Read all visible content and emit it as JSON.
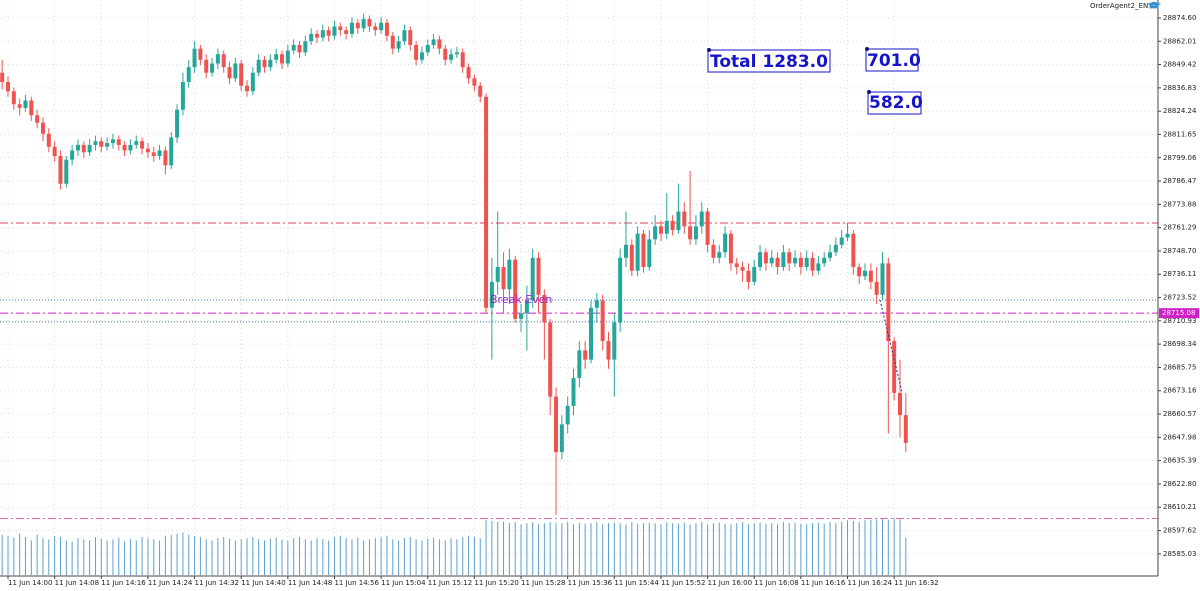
{
  "chart_data": {
    "type": "candlestick",
    "app_label": "OrderAgent2_EN",
    "ylim": [
      28573.6,
      28884.3
    ],
    "yticks": [
      {
        "value": 28874.6,
        "label": "28874.60"
      },
      28862.01,
      28849.42,
      28836.83,
      28824.24,
      28811.65,
      28799.06,
      28786.47,
      28773.88,
      28761.29,
      {
        "value": 28748.7,
        "label": "28748.70"
      },
      28736.11,
      28723.52,
      28710.93,
      28698.34,
      28685.75,
      28673.16,
      28660.57,
      28647.98,
      28635.39,
      {
        "value": 28622.8,
        "label": "28622.80"
      },
      28610.21,
      28597.62,
      28585.03
    ],
    "grid": true,
    "up_color": "#26a69a",
    "down_color": "#ef5350",
    "volume_color": "#5b9fcf",
    "categories": [
      null,
      "11 Jun 14:00",
      null,
      null,
      null,
      null,
      null,
      null,
      null,
      "11 Jun 14:08",
      null,
      null,
      null,
      null,
      null,
      null,
      null,
      "11 Jun 14:16",
      null,
      null,
      null,
      null,
      null,
      null,
      null,
      "11 Jun 14:24",
      null,
      null,
      null,
      null,
      null,
      null,
      null,
      "11 Jun 14:32",
      null,
      null,
      null,
      null,
      null,
      null,
      null,
      "11 Jun 14:40",
      null,
      null,
      null,
      null,
      null,
      null,
      null,
      "11 Jun 14:48",
      null,
      null,
      null,
      null,
      null,
      null,
      null,
      "11 Jun 14:56",
      null,
      null,
      null,
      null,
      null,
      null,
      null,
      "11 Jun 15:04",
      null,
      null,
      null,
      null,
      null,
      null,
      null,
      "11 Jun 15:12",
      null,
      null,
      null,
      null,
      null,
      null,
      null,
      "11 Jun 15:20",
      null,
      null,
      null,
      null,
      null,
      null,
      null,
      "11 Jun 15:28",
      null,
      null,
      null,
      null,
      null,
      null,
      null,
      "11 Jun 15:36",
      null,
      null,
      null,
      null,
      null,
      null,
      null,
      "11 Jun 15:44",
      null,
      null,
      null,
      null,
      null,
      null,
      null,
      "11 Jun 15:52",
      null,
      null,
      null,
      null,
      null,
      null,
      null,
      "11 Jun 16:00",
      null,
      null,
      null,
      null,
      null,
      null,
      null,
      "11 Jun 16:08",
      null,
      null,
      null,
      null,
      null,
      null,
      null,
      "11 Jun 16:16",
      null,
      null,
      null,
      null,
      null,
      null,
      null,
      "11 Jun 16:24",
      null,
      null,
      null,
      null,
      null,
      null,
      null,
      "11 Jun 16:32",
      null,
      null
    ],
    "candles": [
      [
        28845,
        28852,
        28836,
        28840
      ],
      [
        28840,
        28843,
        28832,
        28835
      ],
      [
        28835,
        28837,
        28825,
        28828
      ],
      [
        28828,
        28831,
        28822,
        28826
      ],
      [
        28826,
        28833,
        28824,
        28830
      ],
      [
        28830,
        28832,
        28819,
        28822
      ],
      [
        28822,
        28825,
        28815,
        28818
      ],
      [
        28818,
        28821,
        28808,
        28812
      ],
      [
        28812,
        28815,
        28802,
        28805
      ],
      [
        28805,
        28808,
        28797,
        28800
      ],
      [
        28800,
        28803,
        28782,
        28785
      ],
      [
        28785,
        28800,
        28783,
        28798
      ],
      [
        28798,
        28806,
        28795,
        28803
      ],
      [
        28803,
        28809,
        28800,
        28806
      ],
      [
        28806,
        28808,
        28799,
        28802
      ],
      [
        28802,
        28809,
        28800,
        28806
      ],
      [
        28806,
        28811,
        28803,
        28808
      ],
      [
        28808,
        28810,
        28802,
        28805
      ],
      [
        28805,
        28810,
        28803,
        28807
      ],
      [
        28807,
        28812,
        28804,
        28809
      ],
      [
        28809,
        28811,
        28803,
        28806
      ],
      [
        28806,
        28808,
        28800,
        28803
      ],
      [
        28803,
        28809,
        28801,
        28806
      ],
      [
        28806,
        28811,
        28804,
        28808
      ],
      [
        28808,
        28810,
        28801,
        28804
      ],
      [
        28804,
        28807,
        28799,
        28802
      ],
      [
        28802,
        28805,
        28797,
        28800
      ],
      [
        28800,
        28806,
        28798,
        28803
      ],
      [
        28803,
        28805,
        28790,
        28795
      ],
      [
        28795,
        28813,
        28793,
        28810
      ],
      [
        28810,
        28828,
        28807,
        28825
      ],
      [
        28825,
        28845,
        28822,
        28840
      ],
      [
        28840,
        28852,
        28837,
        28848
      ],
      [
        28848,
        28862,
        28845,
        28858
      ],
      [
        28858,
        28860,
        28849,
        28852
      ],
      [
        28852,
        28855,
        28842,
        28845
      ],
      [
        28845,
        28853,
        28843,
        28850
      ],
      [
        28850,
        28858,
        28847,
        28855
      ],
      [
        28855,
        28857,
        28845,
        28848
      ],
      [
        28848,
        28851,
        28839,
        28842
      ],
      [
        28842,
        28853,
        28840,
        28850
      ],
      [
        28850,
        28852,
        28835,
        28838
      ],
      [
        28838,
        28841,
        28832,
        28835
      ],
      [
        28835,
        28848,
        28833,
        28845
      ],
      [
        28845,
        28855,
        28843,
        28852
      ],
      [
        28852,
        28854,
        28845,
        28848
      ],
      [
        28848,
        28855,
        28846,
        28852
      ],
      [
        28852,
        28858,
        28850,
        28855
      ],
      [
        28855,
        28857,
        28847,
        28850
      ],
      [
        28850,
        28860,
        28848,
        28857
      ],
      [
        28857,
        28863,
        28855,
        28860
      ],
      [
        28860,
        28862,
        28853,
        28856
      ],
      [
        28856,
        28865,
        28854,
        28862
      ],
      [
        28862,
        28869,
        28860,
        28866
      ],
      [
        28866,
        28868,
        28861,
        28864
      ],
      [
        28864,
        28871,
        28862,
        28868
      ],
      [
        28868,
        28870,
        28862,
        28865
      ],
      [
        28865,
        28873,
        28863,
        28870
      ],
      [
        28870,
        28872,
        28865,
        28868
      ],
      [
        28868,
        28870,
        28863,
        28866
      ],
      [
        28866,
        28875,
        28864,
        28872
      ],
      [
        28872,
        28874,
        28866,
        28869
      ],
      [
        28869,
        28877,
        28867,
        28874
      ],
      [
        28874,
        28876,
        28867,
        28870
      ],
      [
        28870,
        28872,
        28865,
        28868
      ],
      [
        28868,
        28875,
        28866,
        28872
      ],
      [
        28872,
        28874,
        28862,
        28865
      ],
      [
        28865,
        28867,
        28855,
        28858
      ],
      [
        28858,
        28865,
        28856,
        28862
      ],
      [
        28862,
        28871,
        28860,
        28868
      ],
      [
        28868,
        28870,
        28857,
        28860
      ],
      [
        28860,
        28862,
        28849,
        28852
      ],
      [
        28852,
        28859,
        28850,
        28856
      ],
      [
        28856,
        28863,
        28854,
        28860
      ],
      [
        28860,
        28866,
        28858,
        28863
      ],
      [
        28863,
        28865,
        28855,
        28858
      ],
      [
        28858,
        28860,
        28849,
        28852
      ],
      [
        28852,
        28858,
        28850,
        28855
      ],
      [
        28855,
        28859,
        28853,
        28856
      ],
      [
        28856,
        28858,
        28845,
        28848
      ],
      [
        28848,
        28850,
        28839,
        28842
      ],
      [
        28842,
        28844,
        28835,
        28838
      ],
      [
        28838,
        28840,
        28829,
        28832
      ],
      [
        28832,
        28834,
        28715,
        28718
      ],
      [
        28718,
        28745,
        28690,
        28732
      ],
      [
        28732,
        28770,
        28725,
        28740
      ],
      [
        28740,
        28748,
        28715,
        28728
      ],
      [
        28728,
        28750,
        28720,
        28744
      ],
      [
        28744,
        28746,
        28710,
        28712
      ],
      [
        28712,
        28720,
        28705,
        28715
      ],
      [
        28715,
        28730,
        28695,
        28722
      ],
      [
        28722,
        28750,
        28718,
        28745
      ],
      [
        28745,
        28748,
        28715,
        28725
      ],
      [
        28725,
        28728,
        28690,
        28710
      ],
      [
        28710,
        28712,
        28660,
        28670
      ],
      [
        28670,
        28675,
        28606,
        28640
      ],
      [
        28640,
        28660,
        28636,
        28655
      ],
      [
        28655,
        28670,
        28650,
        28665
      ],
      [
        28665,
        28685,
        28660,
        28680
      ],
      [
        28680,
        28700,
        28675,
        28695
      ],
      [
        28695,
        28700,
        28685,
        28690
      ],
      [
        28690,
        28722,
        28688,
        28718
      ],
      [
        28718,
        28726,
        28710,
        28722
      ],
      [
        28722,
        28725,
        28695,
        28700
      ],
      [
        28700,
        28705,
        28685,
        28690
      ],
      [
        28690,
        28715,
        28670,
        28710
      ],
      [
        28710,
        28750,
        28705,
        28745
      ],
      [
        28745,
        28770,
        28740,
        28752
      ],
      [
        28752,
        28755,
        28735,
        28738
      ],
      [
        28738,
        28762,
        28735,
        28758
      ],
      [
        28758,
        28760,
        28737,
        28740
      ],
      [
        28740,
        28760,
        28738,
        28755
      ],
      [
        28755,
        28768,
        28752,
        28762
      ],
      [
        28762,
        28765,
        28754,
        28758
      ],
      [
        28758,
        28780,
        28755,
        28765
      ],
      [
        28765,
        28768,
        28757,
        28760
      ],
      [
        28760,
        28785,
        28758,
        28770
      ],
      [
        28770,
        28775,
        28758,
        28762
      ],
      [
        28762,
        28792,
        28752,
        28755
      ],
      [
        28755,
        28768,
        28752,
        28762
      ],
      [
        28762,
        28775,
        28758,
        28770
      ],
      [
        28770,
        28772,
        28748,
        28752
      ],
      [
        28752,
        28755,
        28742,
        28745
      ],
      [
        28745,
        28752,
        28742,
        28748
      ],
      [
        28748,
        28762,
        28745,
        28758
      ],
      [
        28758,
        28760,
        28738,
        28742
      ],
      [
        28742,
        28745,
        28736,
        28740
      ],
      [
        28740,
        28743,
        28732,
        28738
      ],
      [
        28738,
        28742,
        28728,
        28732
      ],
      [
        28732,
        28744,
        28730,
        28740
      ],
      [
        28740,
        28752,
        28738,
        28748
      ],
      [
        28748,
        28750,
        28738,
        28742
      ],
      [
        28742,
        28749,
        28740,
        28745
      ],
      [
        28745,
        28748,
        28736,
        28740
      ],
      [
        28740,
        28752,
        28738,
        28748
      ],
      [
        28748,
        28750,
        28738,
        28742
      ],
      [
        28742,
        28749,
        28740,
        28745
      ],
      [
        28745,
        28748,
        28736,
        28740
      ],
      [
        28740,
        28749,
        28738,
        28745
      ],
      [
        28745,
        28748,
        28735,
        28738
      ],
      [
        28738,
        28746,
        28736,
        28742
      ],
      [
        28742,
        28748,
        28740,
        28745
      ],
      [
        28745,
        28752,
        28743,
        28748
      ],
      [
        28748,
        28756,
        28746,
        28752
      ],
      [
        28752,
        28760,
        28750,
        28756
      ],
      [
        28756,
        28764,
        28754,
        28758
      ],
      [
        28758,
        28760,
        28736,
        28740
      ],
      [
        28740,
        28742,
        28731,
        28735
      ],
      [
        28735,
        28742,
        28733,
        28738
      ],
      [
        28738,
        28742,
        28728,
        28732
      ],
      [
        28732,
        28740,
        28720,
        28725
      ],
      [
        28725,
        28748,
        28722,
        28742
      ],
      [
        28742,
        28745,
        28650,
        28700
      ],
      [
        28700,
        28702,
        28668,
        28672
      ],
      [
        28672,
        28690,
        28648,
        28660
      ],
      [
        28660,
        28672,
        28640,
        28645
      ]
    ],
    "volumes": [
      70,
      68,
      65,
      72,
      66,
      60,
      70,
      64,
      62,
      68,
      66,
      60,
      58,
      64,
      62,
      60,
      66,
      63,
      60,
      62,
      65,
      58,
      62,
      60,
      66,
      64,
      62,
      60,
      68,
      70,
      72,
      74,
      70,
      68,
      66,
      62,
      60,
      64,
      66,
      63,
      60,
      62,
      64,
      66,
      62,
      60,
      63,
      65,
      62,
      60,
      64,
      66,
      62,
      60,
      64,
      62,
      60,
      66,
      68,
      64,
      62,
      65,
      60,
      62,
      64,
      66,
      68,
      62,
      60,
      64,
      66,
      62,
      60,
      63,
      65,
      62,
      60,
      64,
      62,
      66,
      68,
      66,
      64,
      95,
      94,
      92,
      93,
      90,
      92,
      88,
      90,
      92,
      88,
      90,
      92,
      91,
      90,
      92,
      88,
      90,
      89,
      90,
      92,
      88,
      90,
      91,
      90,
      88,
      92,
      89,
      90,
      91,
      90,
      88,
      92,
      90,
      89,
      91,
      88,
      90,
      92,
      88,
      90,
      91,
      89,
      88,
      90,
      92,
      88,
      90,
      91,
      89,
      90,
      88,
      92,
      90,
      91,
      89,
      88,
      90,
      91,
      89,
      92,
      90,
      93,
      95,
      94,
      92,
      95,
      96,
      97,
      98,
      96,
      99,
      97,
      65
    ],
    "levels": [
      {
        "price": 28763.8,
        "color": "#e0405a",
        "style": "dashdot"
      },
      {
        "price": 28722.2,
        "color": "#3c7aa8",
        "style": "dotted"
      },
      {
        "price": 28715.08,
        "color": "#d020c8",
        "style": "dashdot",
        "highlight": true
      },
      {
        "price": 28710.4,
        "color": "#3c7aa8",
        "style": "dotted"
      },
      {
        "price": 28604.1,
        "color": "#e06ab0",
        "style": "dashdot"
      }
    ],
    "break_even_label": "Break Even",
    "total_box": "Total 1283.0",
    "box_a": "701.0",
    "box_b": "582.0"
  }
}
